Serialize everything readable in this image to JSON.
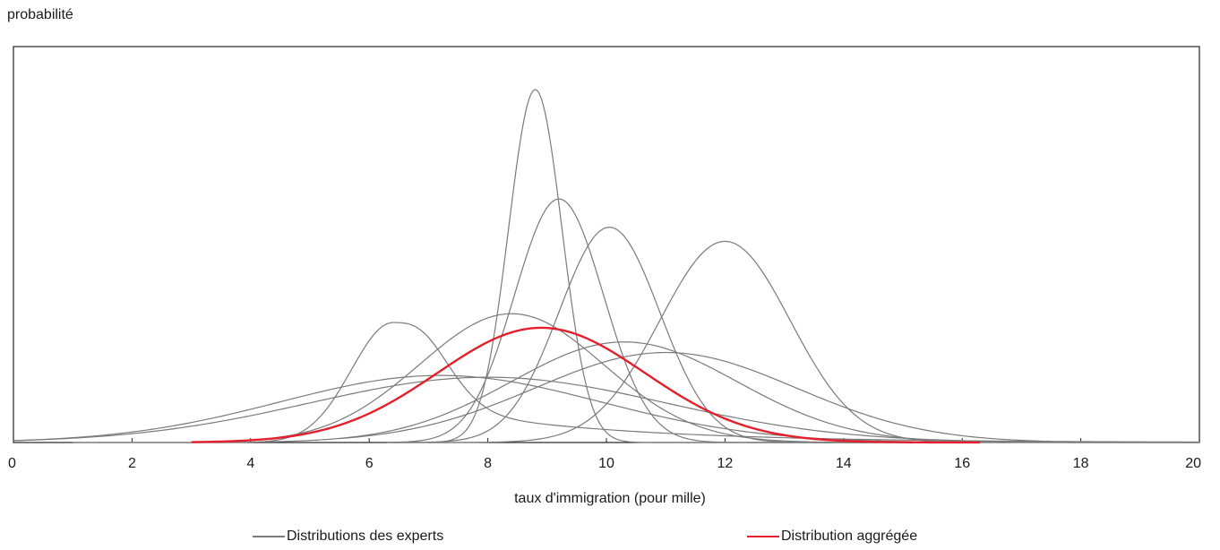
{
  "chart_data": {
    "type": "line",
    "ylabel": "probabilité",
    "xlabel": "taux d'immigration (pour mille)",
    "xlim": [
      0,
      20
    ],
    "xticks": [
      "0",
      "2",
      "4",
      "6",
      "8",
      "10",
      "12",
      "14",
      "16",
      "18",
      "20"
    ],
    "grid": false,
    "legend_placement": "bottom",
    "series_colors": {
      "experts": "#7a7a7a",
      "aggregate": "#e3202b"
    },
    "legend": [
      {
        "key": "experts",
        "label": "Distributions des experts"
      },
      {
        "key": "aggregate",
        "label": "Distribution aggrégée"
      }
    ],
    "series": [
      {
        "group": "experts",
        "mean": 8.8,
        "sd": 0.45,
        "peak": 1.0,
        "min": 6.3,
        "max": 14.6
      },
      {
        "group": "experts",
        "mean": 9.2,
        "sd": 0.75,
        "peak": 0.69,
        "min": 6.3,
        "max": 14.6
      },
      {
        "group": "experts",
        "mean": 10.05,
        "sd": 0.85,
        "peak": 0.61,
        "min": 6.4,
        "max": 14.8
      },
      {
        "group": "experts",
        "mean": 12.0,
        "sd": 1.1,
        "peak": 0.57,
        "min": 7.0,
        "max": 16.8
      },
      {
        "group": "experts",
        "mean": 8.4,
        "sd": 1.55,
        "peak": 0.365,
        "min": 3.5,
        "max": 15.0
      },
      {
        "group": "experts",
        "mean": 10.3,
        "sd": 1.9,
        "peak": 0.285,
        "min": 4.2,
        "max": 16.5
      },
      {
        "group": "experts",
        "mean": 11.0,
        "sd": 2.2,
        "peak": 0.255,
        "min": 5.5,
        "max": 17.5
      },
      {
        "group": "experts",
        "mean": 7.2,
        "sd": 2.7,
        "peak": 0.19,
        "min": 0.0,
        "max": 20.0
      },
      {
        "group": "experts",
        "mean": 8.0,
        "sd": 3.0,
        "peak": 0.185,
        "min": 0.0,
        "max": 20.0
      },
      {
        "group": "experts",
        "mean": 6.4,
        "sd": 0.7,
        "peak": 0.34,
        "min": 1.0,
        "max": 20.0,
        "tail": 0.12,
        "tailLambda": 0.33
      },
      {
        "group": "aggregate",
        "mean": 8.9,
        "sd": 1.75,
        "peak": 0.325,
        "min": 3.0,
        "max": 16.3
      }
    ]
  }
}
